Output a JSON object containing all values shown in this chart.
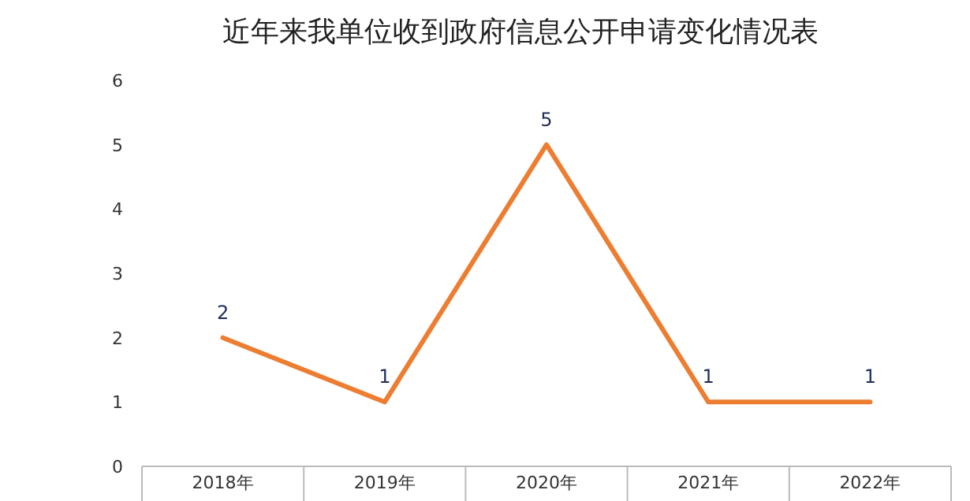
{
  "chart_data": {
    "type": "line",
    "title": "近年来我单位收到政府信息公开申请变化情况表",
    "categories": [
      "2018年",
      "2019年",
      "2020年",
      "2021年",
      "2022年"
    ],
    "series": [
      {
        "color": "#ed7d31",
        "values": [
          2,
          1,
          5,
          1,
          1
        ]
      }
    ],
    "ylim": [
      0,
      6
    ],
    "yticks": [
      0,
      1,
      2,
      3,
      4,
      5,
      6
    ],
    "grid": false,
    "data_labels": true,
    "marker": "none",
    "line_style": "solid"
  }
}
